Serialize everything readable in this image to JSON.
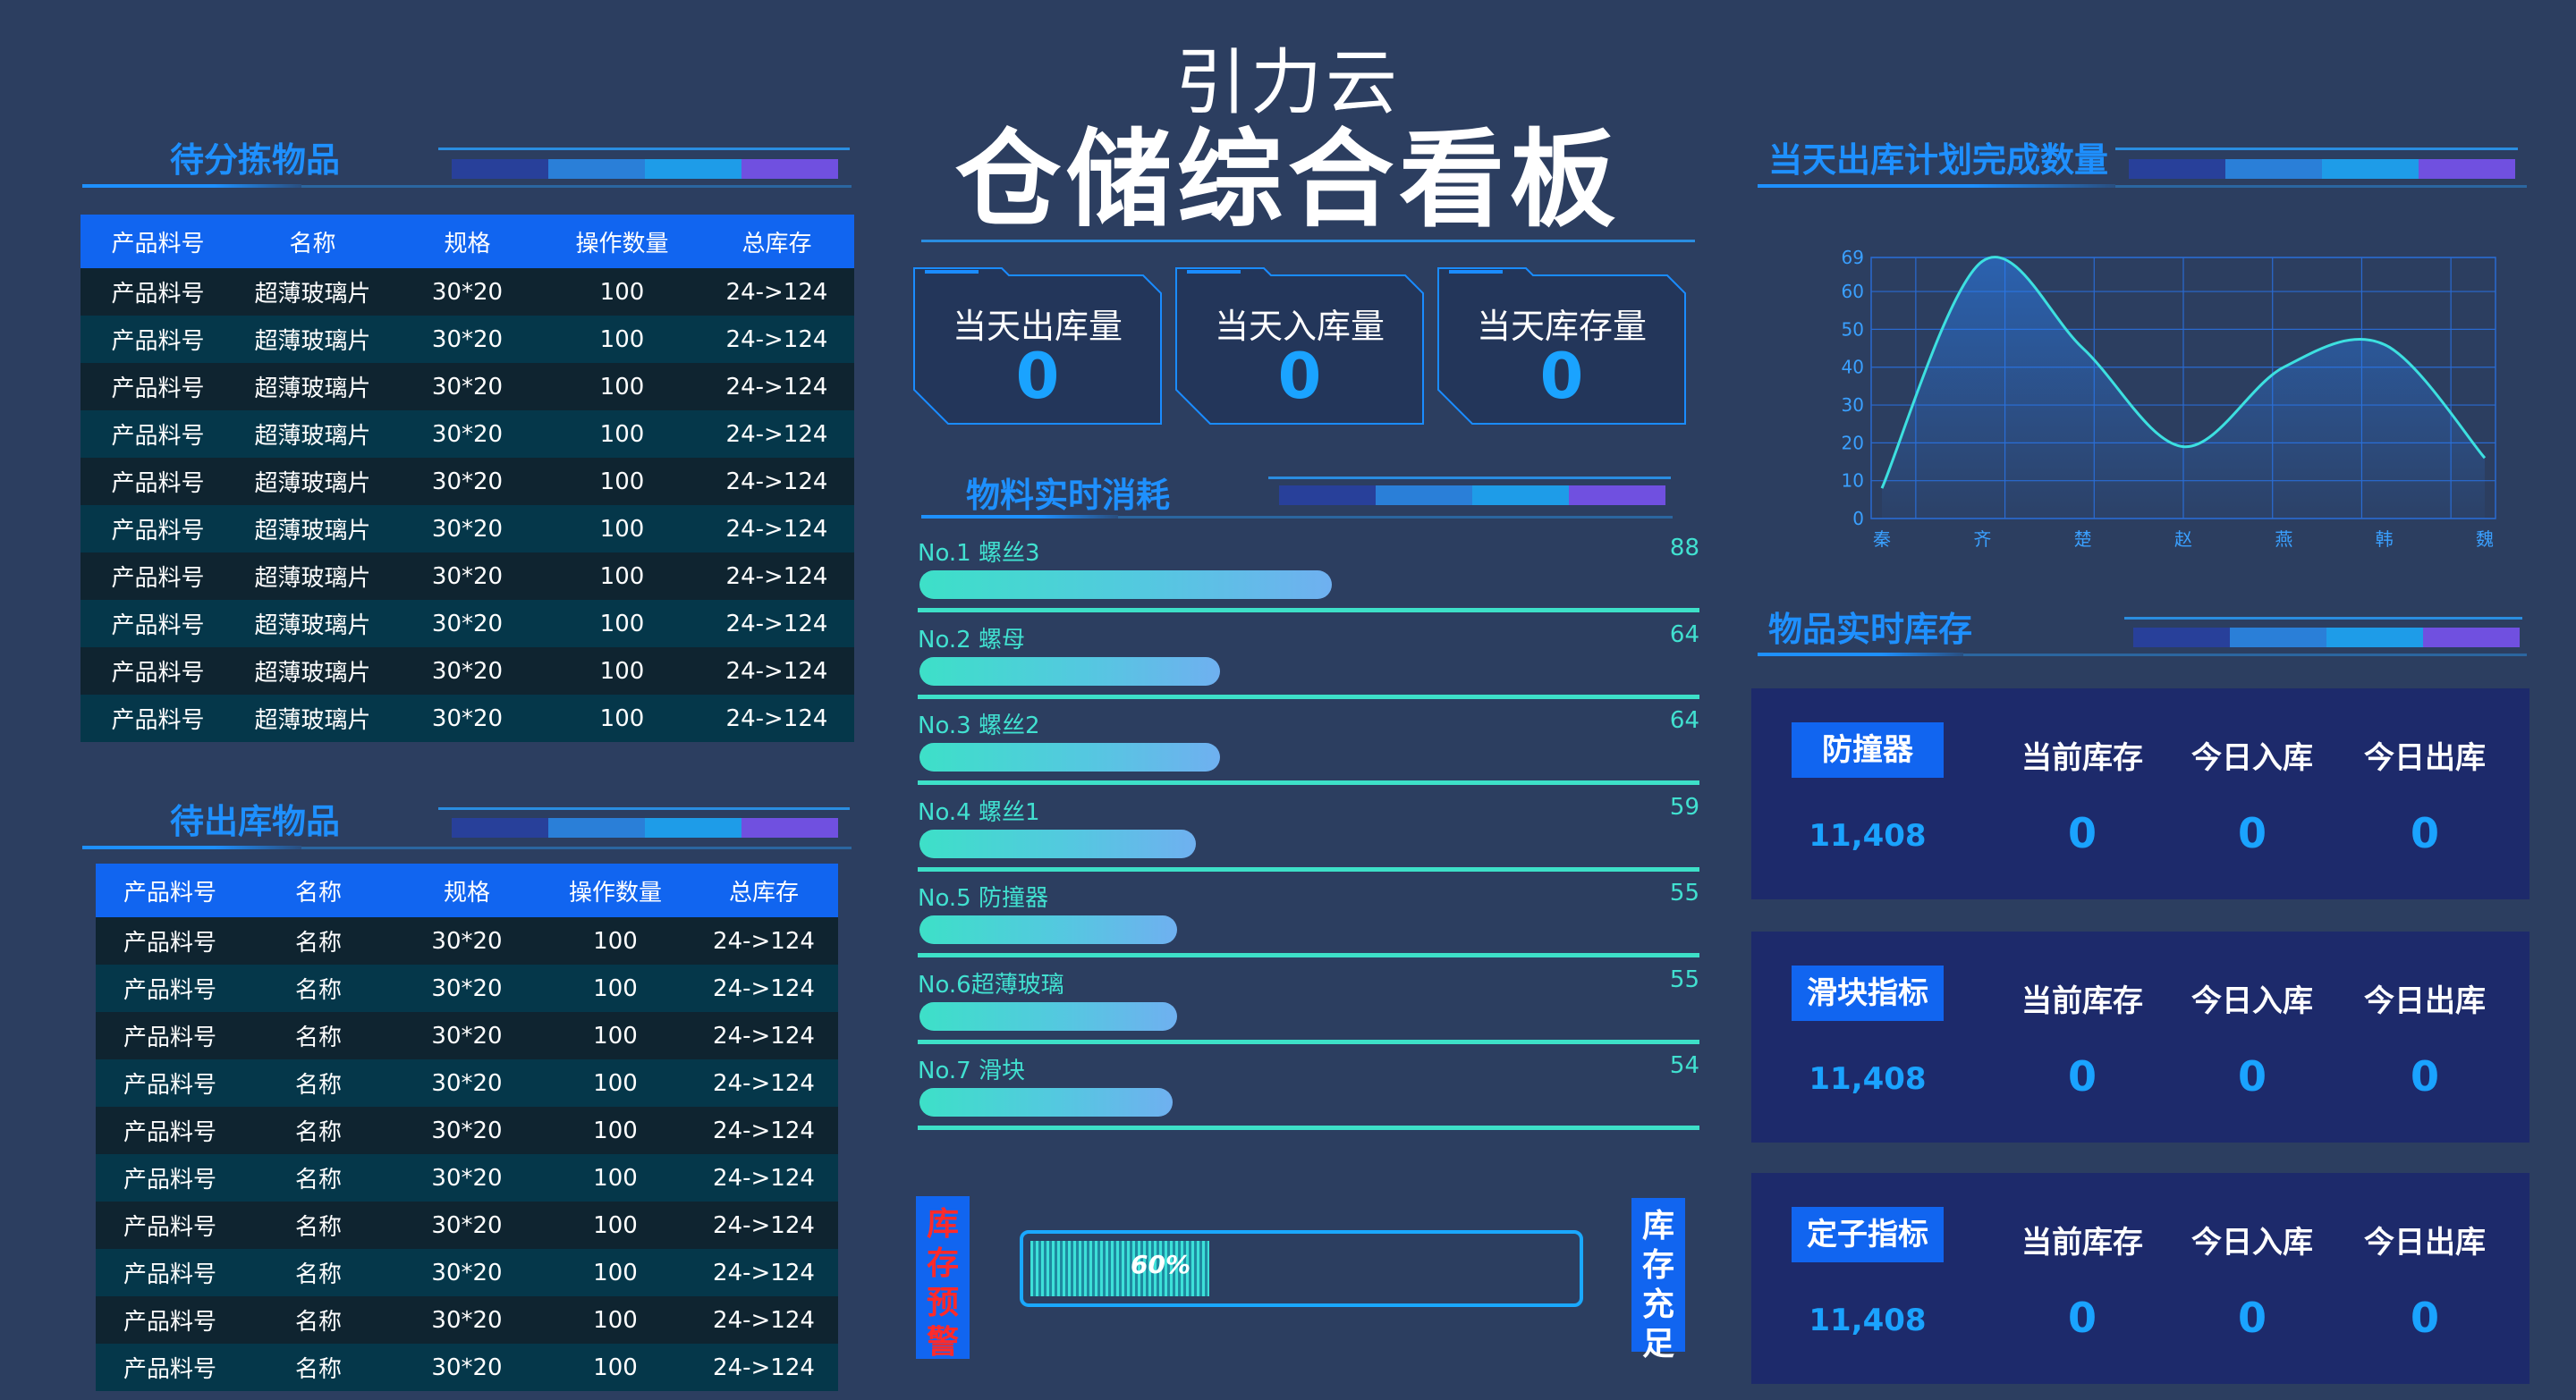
{
  "header": {
    "subtitle": "引力云",
    "title": "仓储综合看板"
  },
  "pending_pick": {
    "title": "待分拣物品",
    "columns": [
      "产品料号",
      "名称",
      "规格",
      "操作数量",
      "总库存"
    ],
    "rows": [
      [
        "产品料号",
        "超薄玻璃片",
        "30*20",
        "100",
        "24->124"
      ],
      [
        "产品料号",
        "超薄玻璃片",
        "30*20",
        "100",
        "24->124"
      ],
      [
        "产品料号",
        "超薄玻璃片",
        "30*20",
        "100",
        "24->124"
      ],
      [
        "产品料号",
        "超薄玻璃片",
        "30*20",
        "100",
        "24->124"
      ],
      [
        "产品料号",
        "超薄玻璃片",
        "30*20",
        "100",
        "24->124"
      ],
      [
        "产品料号",
        "超薄玻璃片",
        "30*20",
        "100",
        "24->124"
      ],
      [
        "产品料号",
        "超薄玻璃片",
        "30*20",
        "100",
        "24->124"
      ],
      [
        "产品料号",
        "超薄玻璃片",
        "30*20",
        "100",
        "24->124"
      ],
      [
        "产品料号",
        "超薄玻璃片",
        "30*20",
        "100",
        "24->124"
      ],
      [
        "产品料号",
        "超薄玻璃片",
        "30*20",
        "100",
        "24->124"
      ]
    ]
  },
  "pending_out": {
    "title": "待出库物品",
    "columns": [
      "产品料号",
      "名称",
      "规格",
      "操作数量",
      "总库存"
    ],
    "rows": [
      [
        "产品料号",
        "名称",
        "30*20",
        "100",
        "24->124"
      ],
      [
        "产品料号",
        "名称",
        "30*20",
        "100",
        "24->124"
      ],
      [
        "产品料号",
        "名称",
        "30*20",
        "100",
        "24->124"
      ],
      [
        "产品料号",
        "名称",
        "30*20",
        "100",
        "24->124"
      ],
      [
        "产品料号",
        "名称",
        "30*20",
        "100",
        "24->124"
      ],
      [
        "产品料号",
        "名称",
        "30*20",
        "100",
        "24->124"
      ],
      [
        "产品料号",
        "名称",
        "30*20",
        "100",
        "24->124"
      ],
      [
        "产品料号",
        "名称",
        "30*20",
        "100",
        "24->124"
      ],
      [
        "产品料号",
        "名称",
        "30*20",
        "100",
        "24->124"
      ],
      [
        "产品料号",
        "名称",
        "30*20",
        "100",
        "24->124"
      ]
    ]
  },
  "stats": [
    {
      "label": "当天出库量",
      "value": "0"
    },
    {
      "label": "当天入库量",
      "value": "0"
    },
    {
      "label": "当天库存量",
      "value": "0"
    }
  ],
  "consumption": {
    "title": "物料实时消耗",
    "max": 100,
    "items": [
      {
        "name": "No.1 螺丝3",
        "value": 88
      },
      {
        "name": "No.2 螺母",
        "value": 64
      },
      {
        "name": "No.3 螺丝2",
        "value": 64
      },
      {
        "name": "No.4 螺丝1",
        "value": 59
      },
      {
        "name": "No.5 防撞器",
        "value": 55
      },
      {
        "name": "No.6超薄玻璃",
        "value": 55
      },
      {
        "name": "No.7 滑块",
        "value": 54
      }
    ]
  },
  "stock_gauge": {
    "left_label": "库存预警",
    "right_label": "库存充足",
    "percent": 60,
    "percent_text": "60%"
  },
  "plan_chart": {
    "section_title": "当天出库计划完成数量",
    "chart_data": {
      "type": "area",
      "categories": [
        "秦",
        "齐",
        "楚",
        "赵",
        "燕",
        "韩",
        "魏"
      ],
      "values": [
        8,
        68,
        45,
        19,
        40,
        46,
        16
      ],
      "ylim": [
        0,
        69
      ],
      "yticks": [
        0,
        10,
        20,
        30,
        40,
        50,
        60,
        69
      ],
      "grid": true,
      "line_color": "#3de0e0"
    }
  },
  "realtime_stock": {
    "title": "物品实时库存",
    "items": [
      {
        "name": "防撞器",
        "amount": "11,408",
        "current": "0",
        "in": "0",
        "out": "0"
      },
      {
        "name": "滑块指标",
        "amount": "11,408",
        "current": "0",
        "in": "0",
        "out": "0"
      },
      {
        "name": "定子指标",
        "amount": "11,408",
        "current": "0",
        "in": "0",
        "out": "0"
      }
    ],
    "headers": [
      "当前库存",
      "今日入库",
      "今日出库"
    ]
  },
  "colors": {
    "background": "#2c3e60",
    "accent": "#1e90ff",
    "header_blue": "#1165f0",
    "teal": "#3de0c8",
    "warning_red": "#ff2a2a"
  }
}
